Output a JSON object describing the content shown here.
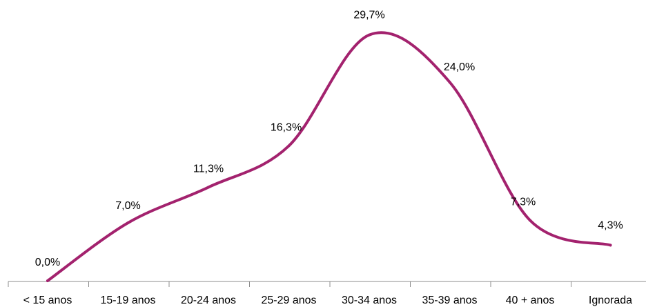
{
  "chart_data": {
    "type": "line",
    "categories": [
      "< 15 anos",
      "15-19 anos",
      "20-24 anos",
      "25-29 anos",
      "30-34 anos",
      "35-39 anos",
      "40 + anos",
      "Ignorada"
    ],
    "series": [
      {
        "values": [
          0.0,
          7.0,
          11.3,
          16.3,
          29.7,
          24.0,
          7.3,
          4.3
        ],
        "labels": [
          "0,0%",
          "7,0%",
          "11,3%",
          "16,3%",
          "29,7%",
          "24,0%",
          "7,3%",
          "4,3%"
        ],
        "color": "#a3226e"
      }
    ],
    "title": "",
    "xlabel": "",
    "ylabel": "",
    "ylim": [
      0,
      30
    ],
    "grid": false,
    "legend": "none",
    "smooth": true
  }
}
